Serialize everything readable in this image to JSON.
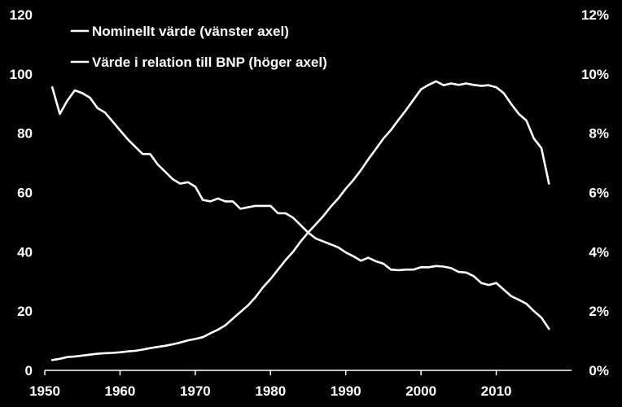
{
  "chart_data": {
    "type": "line",
    "title": "",
    "xlabel": "",
    "ylabel_left": "",
    "ylabel_right": "",
    "xlim": [
      1950,
      2020
    ],
    "ylim_left": [
      0,
      120
    ],
    "ylim_right": [
      0,
      12
    ],
    "x_ticks": [
      "1950",
      "1960",
      "1970",
      "1980",
      "1990",
      "2000",
      "2010"
    ],
    "y_left_ticks": [
      "0",
      "20",
      "40",
      "60",
      "80",
      "100",
      "120"
    ],
    "y_right_ticks": [
      "0%",
      "2%",
      "4%",
      "6%",
      "8%",
      "10%",
      "12%"
    ],
    "legend_position": "top-left",
    "line_color": "#ffffff",
    "background_color": "#000000",
    "series": [
      {
        "name": "Nominellt värde (vänster axel)",
        "axis": "left",
        "x": [
          1951,
          1952,
          1953,
          1954,
          1955,
          1956,
          1957,
          1958,
          1959,
          1960,
          1961,
          1962,
          1963,
          1964,
          1965,
          1966,
          1967,
          1968,
          1969,
          1970,
          1971,
          1972,
          1973,
          1974,
          1975,
          1976,
          1977,
          1978,
          1979,
          1980,
          1981,
          1982,
          1983,
          1984,
          1985,
          1986,
          1987,
          1988,
          1989,
          1990,
          1991,
          1992,
          1993,
          1994,
          1995,
          1996,
          1997,
          1998,
          1999,
          2000,
          2001,
          2002,
          2003,
          2004,
          2005,
          2006,
          2007,
          2008,
          2009,
          2010,
          2011,
          2012,
          2013,
          2014,
          2015,
          2016,
          2017
        ],
        "values": [
          3.5,
          3.9,
          4.5,
          4.7,
          5.0,
          5.3,
          5.6,
          5.8,
          5.9,
          6.1,
          6.4,
          6.6,
          7.0,
          7.5,
          7.9,
          8.3,
          8.8,
          9.4,
          10.1,
          10.6,
          11.2,
          12.5,
          13.7,
          15.2,
          17.5,
          19.7,
          21.9,
          24.7,
          28.0,
          30.8,
          34.0,
          37.2,
          40.0,
          43.5,
          46.5,
          49.2,
          52.0,
          55.2,
          58.0,
          61.3,
          64.2,
          67.5,
          71.2,
          74.7,
          78.2,
          81.1,
          84.5,
          87.8,
          91.3,
          94.8,
          96.3,
          97.5,
          96.2,
          96.8,
          96.3,
          96.8,
          96.3,
          96.0,
          96.2,
          95.5,
          93.5,
          89.8,
          86.5,
          84.3,
          78.2,
          75.0,
          63.0
        ]
      },
      {
        "name": "Värde i relation till BNP (höger axel)",
        "axis": "right",
        "x": [
          1951,
          1952,
          1953,
          1954,
          1955,
          1956,
          1957,
          1958,
          1959,
          1960,
          1961,
          1962,
          1963,
          1964,
          1965,
          1966,
          1967,
          1968,
          1969,
          1970,
          1971,
          1972,
          1973,
          1974,
          1975,
          1976,
          1977,
          1978,
          1979,
          1980,
          1981,
          1982,
          1983,
          1984,
          1985,
          1986,
          1987,
          1988,
          1989,
          1990,
          1991,
          1992,
          1993,
          1994,
          1995,
          1996,
          1997,
          1998,
          1999,
          2000,
          2001,
          2002,
          2003,
          2004,
          2005,
          2006,
          2007,
          2008,
          2009,
          2010,
          2011,
          2012,
          2013,
          2014,
          2015,
          2016,
          2017
        ],
        "values": [
          9.55,
          8.65,
          9.1,
          9.45,
          9.35,
          9.2,
          8.85,
          8.7,
          8.4,
          8.1,
          7.8,
          7.55,
          7.3,
          7.3,
          6.95,
          6.7,
          6.45,
          6.3,
          6.35,
          6.2,
          5.75,
          5.7,
          5.8,
          5.7,
          5.7,
          5.45,
          5.5,
          5.55,
          5.55,
          5.55,
          5.3,
          5.3,
          5.15,
          4.9,
          4.65,
          4.45,
          4.35,
          4.25,
          4.15,
          3.98,
          3.85,
          3.7,
          3.8,
          3.68,
          3.6,
          3.4,
          3.38,
          3.4,
          3.4,
          3.48,
          3.48,
          3.52,
          3.5,
          3.45,
          3.32,
          3.3,
          3.18,
          2.95,
          2.88,
          2.95,
          2.72,
          2.5,
          2.38,
          2.25,
          2.0,
          1.78,
          1.4
        ]
      }
    ]
  }
}
